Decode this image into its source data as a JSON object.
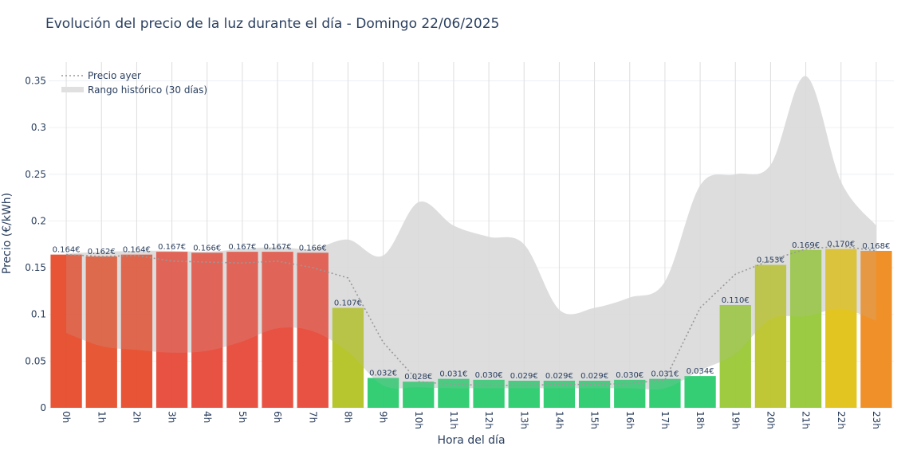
{
  "chart_data": {
    "type": "bar",
    "title": "Evolución del precio de la luz durante el día - Domingo 22/06/2025",
    "xlabel": "Hora del día",
    "ylabel": "Precio (€/kWh)",
    "ylim": [
      0,
      0.37
    ],
    "yticks": [
      "0",
      "0.05",
      "0.1",
      "0.15",
      "0.2",
      "0.25",
      "0.3",
      "0.35"
    ],
    "ytick_values": [
      0,
      0.05,
      0.1,
      0.15,
      0.2,
      0.25,
      0.3,
      0.35
    ],
    "categories": [
      "0h",
      "1h",
      "2h",
      "3h",
      "4h",
      "5h",
      "6h",
      "7h",
      "8h",
      "9h",
      "10h",
      "11h",
      "12h",
      "13h",
      "14h",
      "15h",
      "16h",
      "17h",
      "18h",
      "19h",
      "20h",
      "21h",
      "22h",
      "23h"
    ],
    "values": [
      0.164,
      0.162,
      0.164,
      0.167,
      0.166,
      0.167,
      0.167,
      0.166,
      0.107,
      0.032,
      0.028,
      0.031,
      0.03,
      0.029,
      0.029,
      0.029,
      0.03,
      0.031,
      0.034,
      0.11,
      0.153,
      0.169,
      0.17,
      0.168
    ],
    "value_labels": [
      "0.164€",
      "0.162€",
      "0.164€",
      "0.167€",
      "0.166€",
      "0.167€",
      "0.167€",
      "0.166€",
      "0.107€",
      "0.032€",
      "0.028€",
      "0.031€",
      "0.030€",
      "0.029€",
      "0.029€",
      "0.029€",
      "0.030€",
      "0.031€",
      "0.034€",
      "0.110€",
      "0.153€",
      "0.169€",
      "0.170€",
      "0.168€"
    ],
    "bar_colors": [
      "#e6502f",
      "#e5532f",
      "#e6502f",
      "#e74c3c",
      "#e74c3c",
      "#e74c3c",
      "#e74c3c",
      "#e74c3c",
      "#b5c427",
      "#2ecc71",
      "#2ecc71",
      "#2ecc71",
      "#2ecc71",
      "#2ecc71",
      "#2ecc71",
      "#2ecc71",
      "#2ecc71",
      "#2ecc71",
      "#2ecc71",
      "#9bc93a",
      "#bdc530",
      "#97c93c",
      "#e2c31b",
      "#ef8c22"
    ],
    "series": [
      {
        "name": "Precio ayer",
        "style": "dotted",
        "color": "#999999",
        "values": [
          0.164,
          0.162,
          0.163,
          0.157,
          0.156,
          0.155,
          0.157,
          0.15,
          0.139,
          0.07,
          0.028,
          0.025,
          0.024,
          0.024,
          0.025,
          0.025,
          0.026,
          0.03,
          0.107,
          0.143,
          0.158,
          0.17,
          0.173,
          0.168
        ]
      },
      {
        "name": "Rango histórico (30 días)",
        "style": "band",
        "color": "#e0e0e0",
        "upper": [
          0.165,
          0.167,
          0.168,
          0.168,
          0.167,
          0.17,
          0.172,
          0.17,
          0.18,
          0.163,
          0.22,
          0.195,
          0.183,
          0.175,
          0.105,
          0.107,
          0.118,
          0.135,
          0.238,
          0.25,
          0.26,
          0.355,
          0.242,
          0.195
        ],
        "lower": [
          0.08,
          0.066,
          0.062,
          0.059,
          0.061,
          0.071,
          0.085,
          0.082,
          0.06,
          0.024,
          0.022,
          0.021,
          0.021,
          0.021,
          0.021,
          0.021,
          0.021,
          0.021,
          0.04,
          0.058,
          0.095,
          0.098,
          0.106,
          0.093
        ]
      }
    ],
    "legend": {
      "placement": "top-left",
      "items": [
        "Precio ayer",
        "Rango histórico (30 días)"
      ]
    },
    "grid": true
  }
}
